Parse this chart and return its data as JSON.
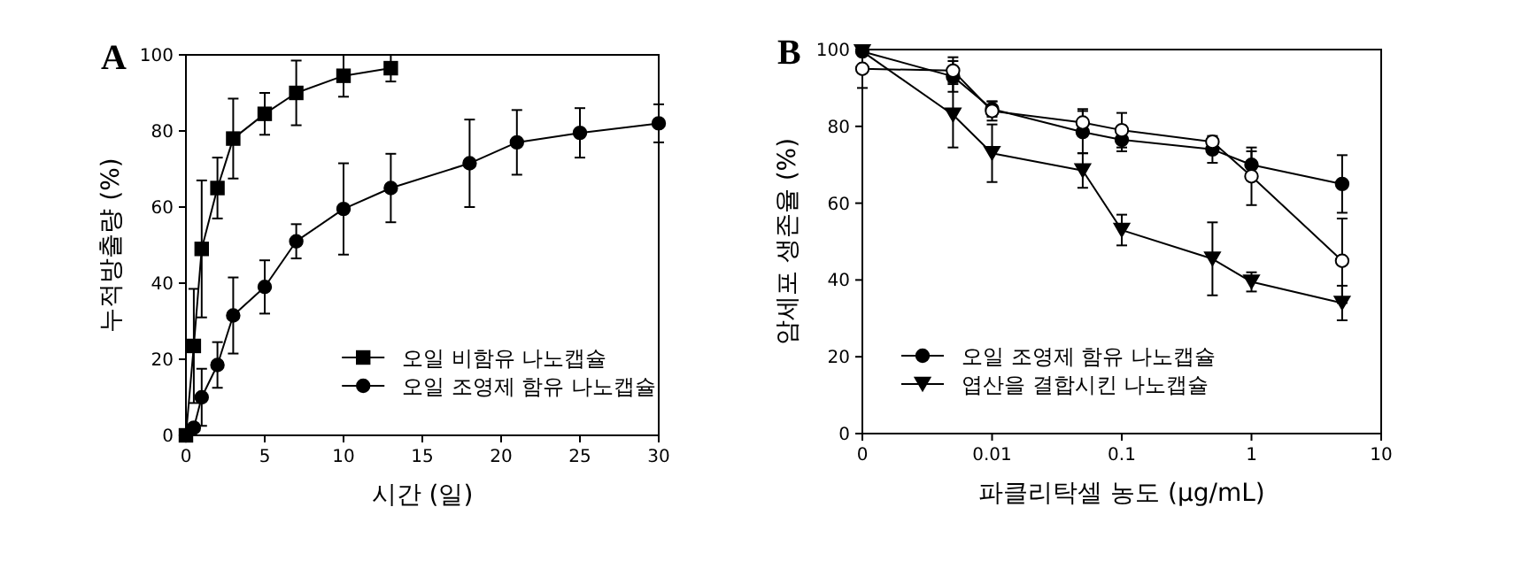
{
  "chart_data": [
    {
      "type": "line",
      "title": "A",
      "xlabel": "시간 (일)",
      "ylabel": "누적방출량 (%)",
      "xlim": [
        0,
        30
      ],
      "xticks": [
        0,
        5,
        10,
        15,
        20,
        25,
        30
      ],
      "ylim": [
        0,
        100
      ],
      "yticks": [
        0,
        20,
        40,
        60,
        80,
        100
      ],
      "legend": "bottom right",
      "series": [
        {
          "name": "오일 비함유 나노캡슐",
          "color": "#000000",
          "marker": "square",
          "x": [
            0,
            0.5,
            1,
            2,
            3,
            5,
            7,
            10,
            13
          ],
          "values": [
            0,
            23.5,
            49,
            65,
            78,
            84.5,
            90,
            94.5,
            96.5
          ],
          "errors": [
            null,
            15,
            18,
            8,
            10.5,
            5.5,
            8.5,
            5.5,
            3.5
          ]
        },
        {
          "name": "오일 조영제 함유 나노캡슐",
          "color": "#000000",
          "marker": "circle",
          "x": [
            0,
            0.5,
            1,
            2,
            3,
            5,
            7,
            10,
            13,
            18,
            21,
            25,
            30
          ],
          "values": [
            0,
            2,
            10,
            18.5,
            31.5,
            39,
            51,
            59.5,
            65,
            71.5,
            77,
            79.5,
            82
          ],
          "errors": [
            null,
            null,
            7.5,
            6,
            10,
            7,
            4.5,
            12,
            9,
            11.5,
            8.5,
            6.5,
            5
          ]
        }
      ]
    },
    {
      "type": "line",
      "title": "B",
      "xlabel": "파클리탁셀 농도 (μg/mL)",
      "ylabel": "암세포 생존율 (%)",
      "log": "x",
      "xlim": [
        0.001,
        10
      ],
      "xticks": [
        {
          "value": 0.001,
          "label": "0"
        },
        0.01,
        0.1,
        1,
        10
      ],
      "ylim": [
        0,
        100
      ],
      "yticks": [
        0,
        20,
        40,
        60,
        80,
        100
      ],
      "legend": "bottom left",
      "series": [
        {
          "name": "오일 조영제 함유 나노캡슐",
          "color": "#000000",
          "marker": "circle",
          "x": [
            0.001,
            0.005,
            0.01,
            0.05,
            0.1,
            0.5,
            1,
            5
          ],
          "values": [
            99.5,
            93,
            84.5,
            78.5,
            76.5,
            74,
            70,
            65
          ],
          "errors": [
            null,
            4,
            2,
            5.5,
            3,
            3.5,
            3.5,
            7.5
          ]
        },
        {
          "color": "#ffffff",
          "marker": "circle",
          "x": [
            0.001,
            0.005,
            0.01,
            0.05,
            0.1,
            0.5,
            1,
            5
          ],
          "values": [
            95,
            94.5,
            84,
            81,
            79,
            76,
            67,
            45
          ],
          "errors": [
            5,
            3.5,
            2.5,
            3.5,
            4.5,
            1,
            7.5,
            11
          ]
        },
        {
          "name": "엽산을 결합시킨 나노캡슐",
          "color": "#000000",
          "marker": "triangle",
          "x": [
            0.001,
            0.005,
            0.01,
            0.05,
            0.1,
            0.5,
            1,
            5
          ],
          "values": [
            99.5,
            83,
            73,
            68.5,
            53,
            45.5,
            39.5,
            34
          ],
          "errors": [
            null,
            8.5,
            7.5,
            4.5,
            4,
            9.5,
            2.5,
            4.5
          ]
        }
      ]
    }
  ]
}
